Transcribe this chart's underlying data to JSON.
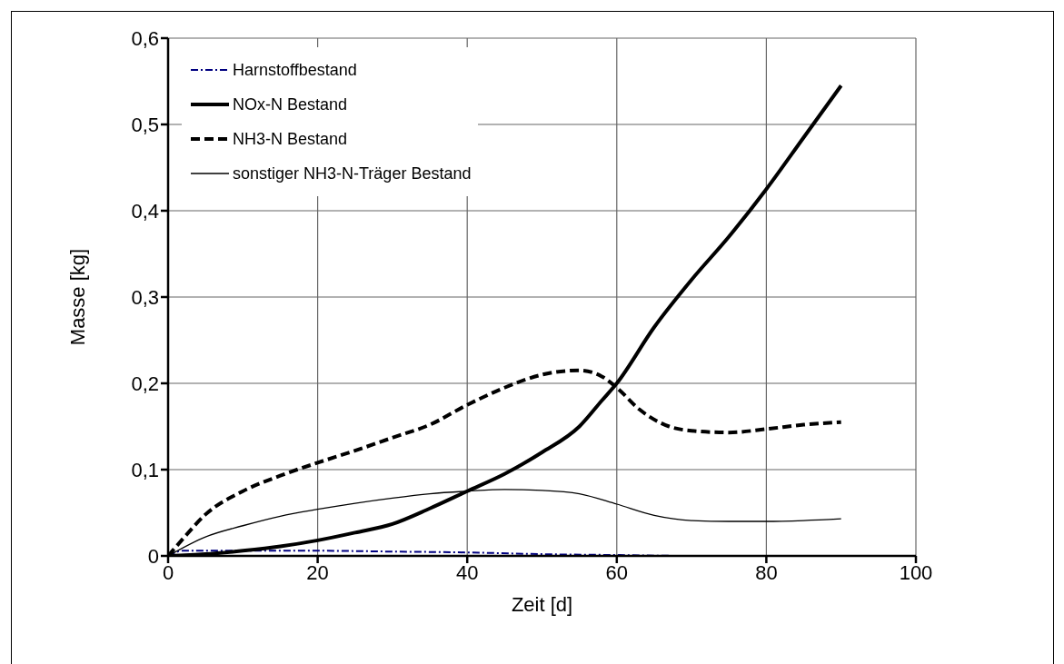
{
  "chart_data": {
    "type": "line",
    "xlabel": "Zeit [d]",
    "ylabel": "Masse [kg]",
    "xlim": [
      0,
      100
    ],
    "xticks": [
      0,
      20,
      40,
      60,
      80,
      100
    ],
    "ylim": [
      0,
      0.6
    ],
    "yticks": [
      {
        "value": 0,
        "label": "0"
      },
      {
        "value": 0.1,
        "label": "0,1"
      },
      {
        "value": 0.2,
        "label": "0,2"
      },
      {
        "value": 0.3,
        "label": "0,3"
      },
      {
        "value": 0.4,
        "label": "0,4"
      },
      {
        "value": 0.5,
        "label": "0,5"
      },
      {
        "value": 0.6,
        "label": "0,6"
      }
    ],
    "grid": true,
    "legend": "top left",
    "marker": "none",
    "series": [
      {
        "name": "Harnstoffbestand",
        "color": "#000080",
        "line_style": "dashed",
        "x": [
          0,
          2,
          10,
          20,
          30,
          40,
          50,
          60,
          70,
          90
        ],
        "values": [
          0,
          0.006,
          0.006,
          0.006,
          0.005,
          0.004,
          0.002,
          0.001,
          0,
          0
        ]
      },
      {
        "name": "NOx-N Bestand",
        "color": "#000000",
        "line_style": "solid",
        "x": [
          0,
          5,
          10,
          15,
          20,
          25,
          30,
          35,
          40,
          45,
          50,
          55,
          58,
          60,
          65,
          70,
          75,
          80,
          85,
          90
        ],
        "values": [
          0,
          0.002,
          0.006,
          0.011,
          0.018,
          0.027,
          0.037,
          0.055,
          0.075,
          0.095,
          0.12,
          0.15,
          0.18,
          0.2,
          0.265,
          0.32,
          0.37,
          0.425,
          0.485,
          0.545
        ]
      },
      {
        "name": "NH3-N Bestand",
        "color": "#000000",
        "line_style": "dashed",
        "x": [
          0,
          2,
          5,
          10,
          15,
          20,
          25,
          30,
          35,
          40,
          45,
          50,
          55,
          58,
          60,
          63,
          67,
          70,
          75,
          80,
          85,
          90
        ],
        "values": [
          0,
          0.02,
          0.048,
          0.075,
          0.093,
          0.108,
          0.122,
          0.137,
          0.152,
          0.175,
          0.195,
          0.21,
          0.215,
          0.208,
          0.195,
          0.17,
          0.15,
          0.145,
          0.143,
          0.147,
          0.152,
          0.155
        ]
      },
      {
        "name": "sonstiger NH3-N-Träger Bestand",
        "color": "#000000",
        "line_style": "solid",
        "x": [
          0,
          5,
          10,
          15,
          20,
          25,
          30,
          35,
          40,
          45,
          50,
          55,
          60,
          65,
          70,
          75,
          80,
          85,
          90
        ],
        "values": [
          0,
          0.022,
          0.035,
          0.046,
          0.054,
          0.061,
          0.067,
          0.072,
          0.075,
          0.077,
          0.076,
          0.072,
          0.06,
          0.047,
          0.041,
          0.04,
          0.04,
          0.041,
          0.043
        ]
      }
    ]
  }
}
